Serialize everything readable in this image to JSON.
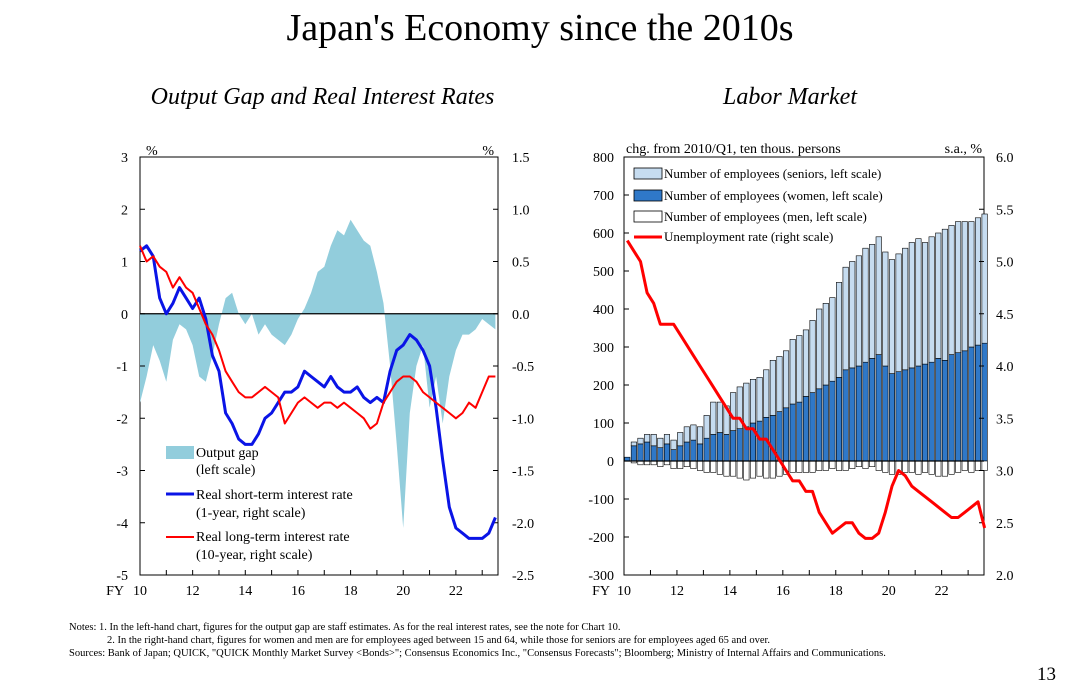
{
  "title": "Japan's Economy since the 2010s",
  "page_number": "13",
  "notes": {
    "line1": "Notes: 1. In the left-hand chart, figures for the output gap are staff estimates. As for the real interest rates, see the note for Chart 10.",
    "line2": "2. In the right-hand chart, figures for women and men are for employees aged between 15 and 64, while those for seniors are for employees aged 65 and over.",
    "sources": "Sources: Bank of Japan; QUICK, \"QUICK Monthly Market Survey <Bonds>\"; Consensus Economics Inc., \"Consensus Forecasts\"; Bloomberg; Ministry of Internal Affairs and Communications."
  },
  "colors": {
    "output_gap": "#92cddc",
    "short_rate": "#0a14e6",
    "long_rate": "#ff0000",
    "seniors": "#c6dcf0",
    "women": "#2f78c8",
    "men": "#ffffff",
    "unemployment": "#ff0000"
  },
  "chart_data": [
    {
      "type": "area+line",
      "title": "Output Gap and Real Interest Rates",
      "x_prefix": "FY",
      "x_ticks": [
        "10",
        "12",
        "14",
        "16",
        "18",
        "20",
        "22"
      ],
      "x_range": [
        10,
        23.6
      ],
      "left_axis": {
        "unit": "%",
        "range": [
          -5,
          3
        ],
        "ticks": [
          "3",
          "2",
          "1",
          "0",
          "-1",
          "-2",
          "-3",
          "-4",
          "-5"
        ]
      },
      "right_axis": {
        "unit": "%",
        "range": [
          -2.5,
          1.5
        ],
        "ticks": [
          "1.5",
          "1.0",
          "0.5",
          "0.0",
          "-0.5",
          "-1.0",
          "-1.5",
          "-2.0",
          "-2.5"
        ]
      },
      "legend": [
        "Output gap",
        "(left scale)",
        "Real short-term interest rate",
        "(1-year, right scale)",
        "Real long-term interest rate",
        "(10-year, right scale)"
      ],
      "series": [
        {
          "name": "Output gap",
          "axis": "left",
          "kind": "area",
          "x": [
            10.0,
            10.25,
            10.5,
            10.75,
            11.0,
            11.25,
            11.5,
            11.75,
            12.0,
            12.25,
            12.5,
            12.75,
            13.0,
            13.25,
            13.5,
            13.75,
            14.0,
            14.25,
            14.5,
            14.75,
            15.0,
            15.25,
            15.5,
            15.75,
            16.0,
            16.25,
            16.5,
            16.75,
            17.0,
            17.25,
            17.5,
            17.75,
            18.0,
            18.25,
            18.5,
            18.75,
            19.0,
            19.25,
            19.5,
            19.75,
            20.0,
            20.25,
            20.5,
            20.75,
            21.0,
            21.25,
            21.5,
            21.75,
            22.0,
            22.25,
            22.5,
            22.75,
            23.0,
            23.25,
            23.5
          ],
          "values": [
            -1.7,
            -1.2,
            -0.6,
            -0.9,
            -1.3,
            -0.5,
            -0.2,
            -0.3,
            -0.6,
            -1.2,
            -1.3,
            -0.8,
            -0.2,
            0.3,
            0.4,
            0.0,
            -0.2,
            0.0,
            -0.4,
            -0.2,
            -0.4,
            -0.5,
            -0.6,
            -0.4,
            -0.1,
            0.1,
            0.4,
            0.8,
            0.9,
            1.3,
            1.6,
            1.5,
            1.8,
            1.6,
            1.4,
            1.3,
            0.8,
            0.2,
            -1.0,
            -2.5,
            -4.1,
            -1.9,
            -1.0,
            -0.6,
            -1.8,
            -1.2,
            -2.1,
            -1.2,
            -0.7,
            -0.4,
            -0.4,
            -0.3,
            -0.1,
            -0.2,
            -0.3
          ]
        },
        {
          "name": "Real short-term interest rate",
          "axis": "right",
          "kind": "line",
          "x": [
            10.0,
            10.25,
            10.5,
            10.75,
            11.0,
            11.25,
            11.5,
            11.75,
            12.0,
            12.25,
            12.5,
            12.75,
            13.0,
            13.25,
            13.5,
            13.75,
            14.0,
            14.25,
            14.5,
            14.75,
            15.0,
            15.25,
            15.5,
            15.75,
            16.0,
            16.25,
            16.5,
            16.75,
            17.0,
            17.25,
            17.5,
            17.75,
            18.0,
            18.25,
            18.5,
            18.75,
            19.0,
            19.25,
            19.5,
            19.75,
            20.0,
            20.25,
            20.5,
            20.75,
            21.0,
            21.25,
            21.5,
            21.75,
            22.0,
            22.25,
            22.5,
            22.75,
            23.0,
            23.25,
            23.5
          ],
          "values": [
            0.6,
            0.65,
            0.55,
            0.15,
            0.0,
            0.1,
            0.25,
            0.15,
            0.05,
            0.15,
            -0.05,
            -0.4,
            -0.55,
            -0.95,
            -1.05,
            -1.2,
            -1.25,
            -1.25,
            -1.15,
            -1.0,
            -0.95,
            -0.85,
            -0.75,
            -0.75,
            -0.7,
            -0.55,
            -0.6,
            -0.65,
            -0.7,
            -0.6,
            -0.7,
            -0.75,
            -0.75,
            -0.7,
            -0.8,
            -0.85,
            -0.8,
            -0.85,
            -0.55,
            -0.35,
            -0.3,
            -0.2,
            -0.25,
            -0.35,
            -0.5,
            -0.9,
            -1.4,
            -1.85,
            -2.05,
            -2.1,
            -2.15,
            -2.15,
            -2.15,
            -2.1,
            -1.95
          ]
        },
        {
          "name": "Real long-term interest rate",
          "axis": "right",
          "kind": "line",
          "x": [
            10.0,
            10.25,
            10.5,
            10.75,
            11.0,
            11.25,
            11.5,
            11.75,
            12.0,
            12.25,
            12.5,
            12.75,
            13.0,
            13.25,
            13.5,
            13.75,
            14.0,
            14.25,
            14.5,
            14.75,
            15.0,
            15.25,
            15.5,
            15.75,
            16.0,
            16.25,
            16.5,
            16.75,
            17.0,
            17.25,
            17.5,
            17.75,
            18.0,
            18.25,
            18.5,
            18.75,
            19.0,
            19.25,
            19.5,
            19.75,
            20.0,
            20.25,
            20.5,
            20.75,
            21.0,
            21.25,
            21.5,
            21.75,
            22.0,
            22.25,
            22.5,
            22.75,
            23.0,
            23.25,
            23.5
          ],
          "values": [
            0.65,
            0.5,
            0.55,
            0.45,
            0.4,
            0.25,
            0.35,
            0.25,
            0.2,
            0.05,
            -0.1,
            -0.2,
            -0.35,
            -0.55,
            -0.65,
            -0.75,
            -0.8,
            -0.8,
            -0.75,
            -0.7,
            -0.75,
            -0.8,
            -1.05,
            -0.95,
            -0.85,
            -0.8,
            -0.85,
            -0.9,
            -0.85,
            -0.85,
            -0.9,
            -0.85,
            -0.9,
            -0.95,
            -1.0,
            -1.1,
            -1.05,
            -0.85,
            -0.75,
            -0.65,
            -0.6,
            -0.6,
            -0.65,
            -0.75,
            -0.8,
            -0.85,
            -0.9,
            -0.95,
            -1.0,
            -0.95,
            -0.85,
            -0.9,
            -0.75,
            -0.6,
            -0.6
          ]
        }
      ]
    },
    {
      "type": "stacked-bar+line",
      "title": "Labor Market",
      "x_prefix": "FY",
      "x_ticks": [
        "10",
        "12",
        "14",
        "16",
        "18",
        "20",
        "22"
      ],
      "x_range": [
        10,
        23.6
      ],
      "left_axis": {
        "unit": "chg. from 2010/Q1, ten thous. persons",
        "range": [
          -300,
          800
        ],
        "ticks": [
          "800",
          "700",
          "600",
          "500",
          "400",
          "300",
          "200",
          "100",
          "0",
          "-100",
          "-200",
          "-300"
        ]
      },
      "right_axis": {
        "unit": "s.a., %",
        "range": [
          2.0,
          6.0
        ],
        "ticks": [
          "6.0",
          "5.5",
          "5.0",
          "4.5",
          "4.0",
          "3.5",
          "3.0",
          "2.5",
          "2.0"
        ]
      },
      "legend": [
        "Number of employees (seniors, left scale)",
        "Number of employees (women, left scale)",
        "Number of employees (men, left scale)",
        "Unemployment rate (right scale)"
      ],
      "x": [
        10.0,
        10.25,
        10.5,
        10.75,
        11.0,
        11.25,
        11.5,
        11.75,
        12.0,
        12.25,
        12.5,
        12.75,
        13.0,
        13.25,
        13.5,
        13.75,
        14.0,
        14.25,
        14.5,
        14.75,
        15.0,
        15.25,
        15.5,
        15.75,
        16.0,
        16.25,
        16.5,
        16.75,
        17.0,
        17.25,
        17.5,
        17.75,
        18.0,
        18.25,
        18.5,
        18.75,
        19.0,
        19.25,
        19.5,
        19.75,
        20.0,
        20.25,
        20.5,
        20.75,
        21.0,
        21.25,
        21.5,
        21.75,
        22.0,
        22.25,
        22.5,
        22.75,
        23.0,
        23.25,
        23.5
      ],
      "series": [
        {
          "name": "Number of employees (women, left scale)",
          "axis": "left",
          "kind": "bar",
          "values": [
            10,
            40,
            45,
            50,
            40,
            35,
            45,
            30,
            40,
            50,
            55,
            45,
            60,
            70,
            75,
            70,
            80,
            85,
            90,
            100,
            105,
            115,
            120,
            130,
            140,
            150,
            155,
            170,
            180,
            190,
            200,
            210,
            220,
            240,
            245,
            250,
            260,
            270,
            280,
            250,
            230,
            235,
            240,
            245,
            250,
            255,
            260,
            270,
            265,
            280,
            285,
            290,
            300,
            305,
            310
          ]
        },
        {
          "name": "Number of employees (seniors, left scale)",
          "axis": "left",
          "kind": "bar",
          "values": [
            0,
            10,
            15,
            20,
            30,
            25,
            25,
            25,
            35,
            40,
            40,
            45,
            60,
            85,
            80,
            75,
            100,
            110,
            115,
            115,
            115,
            125,
            145,
            145,
            150,
            170,
            175,
            175,
            190,
            210,
            215,
            220,
            250,
            270,
            280,
            290,
            300,
            300,
            310,
            300,
            300,
            310,
            320,
            330,
            335,
            320,
            330,
            330,
            345,
            340,
            345,
            340,
            330,
            335,
            340
          ]
        },
        {
          "name": "Number of employees (men, left scale)",
          "axis": "left",
          "kind": "bar-negative",
          "values": [
            0,
            -5,
            -10,
            -10,
            -10,
            -15,
            -10,
            -20,
            -20,
            -15,
            -20,
            -25,
            -30,
            -30,
            -35,
            -40,
            -40,
            -45,
            -50,
            -45,
            -40,
            -45,
            -45,
            -40,
            -35,
            -30,
            -30,
            -30,
            -30,
            -25,
            -25,
            -20,
            -25,
            -25,
            -20,
            -15,
            -20,
            -15,
            -25,
            -30,
            -35,
            -35,
            -30,
            -30,
            -35,
            -30,
            -35,
            -40,
            -40,
            -35,
            -30,
            -25,
            -30,
            -25,
            -25
          ]
        },
        {
          "name": "Unemployment rate (right scale)",
          "axis": "right",
          "kind": "line",
          "values": [
            5.2,
            5.1,
            5.0,
            4.7,
            4.6,
            4.4,
            4.4,
            4.4,
            4.3,
            4.2,
            4.1,
            4.0,
            3.9,
            3.8,
            3.7,
            3.6,
            3.5,
            3.5,
            3.4,
            3.4,
            3.3,
            3.3,
            3.2,
            3.1,
            3.0,
            2.9,
            2.9,
            2.8,
            2.8,
            2.6,
            2.5,
            2.4,
            2.45,
            2.5,
            2.5,
            2.4,
            2.35,
            2.35,
            2.4,
            2.6,
            2.85,
            3.0,
            2.95,
            2.85,
            2.8,
            2.75,
            2.7,
            2.65,
            2.6,
            2.55,
            2.55,
            2.6,
            2.65,
            2.7,
            2.45
          ]
        }
      ]
    }
  ]
}
